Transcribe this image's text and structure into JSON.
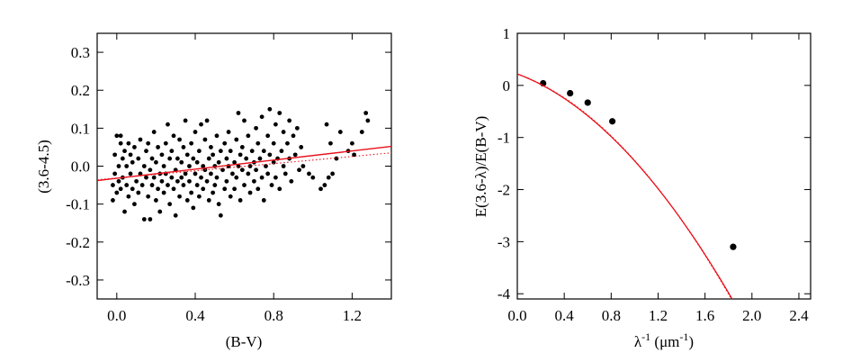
{
  "chart_data": [
    {
      "type": "scatter",
      "xlabel": "(B-V)",
      "ylabel": "(3.6-4.5)",
      "xlim": [
        -0.1,
        1.4
      ],
      "ylim": [
        -0.35,
        0.35
      ],
      "xticks": [
        "0.0",
        "0.4",
        "0.8",
        "1.2"
      ],
      "xtick_values": [
        0.0,
        0.4,
        0.8,
        1.2
      ],
      "yticks": [
        "-0.3",
        "-0.2",
        "-0.1",
        "0.0",
        "0.1",
        "0.2",
        "0.3"
      ],
      "ytick_values": [
        -0.3,
        -0.2,
        -0.1,
        0.0,
        0.1,
        0.2,
        0.3
      ],
      "series": [
        {
          "kind": "points",
          "color": "#000000",
          "points": [
            [
              -0.02,
              -0.09
            ],
            [
              -0.02,
              -0.05
            ],
            [
              -0.01,
              -0.02
            ],
            [
              -0.01,
              0.03
            ],
            [
              0.0,
              0.08
            ],
            [
              0.0,
              -0.07
            ],
            [
              0.01,
              0.0
            ],
            [
              0.01,
              -0.04
            ],
            [
              0.02,
              0.06
            ],
            [
              0.02,
              -0.06
            ],
            [
              0.02,
              0.08
            ],
            [
              0.03,
              -0.03
            ],
            [
              0.03,
              0.02
            ],
            [
              0.04,
              -0.12
            ],
            [
              0.04,
              0.04
            ],
            [
              0.05,
              -0.05
            ],
            [
              0.05,
              0.0
            ],
            [
              0.06,
              -0.08
            ],
            [
              0.06,
              0.06
            ],
            [
              0.07,
              -0.02
            ],
            [
              0.07,
              0.03
            ],
            [
              0.08,
              -0.06
            ],
            [
              0.08,
              0.01
            ],
            [
              0.09,
              -0.1
            ],
            [
              0.09,
              0.05
            ],
            [
              0.1,
              -0.04
            ],
            [
              0.11,
              0.02
            ],
            [
              0.11,
              -0.07
            ],
            [
              0.12,
              0.07
            ],
            [
              0.12,
              -0.02
            ],
            [
              0.13,
              -0.05
            ],
            [
              0.14,
              0.0
            ],
            [
              0.14,
              -0.14
            ],
            [
              0.15,
              0.04
            ],
            [
              0.15,
              -0.03
            ],
            [
              0.16,
              -0.08
            ],
            [
              0.16,
              0.06
            ],
            [
              0.17,
              -0.01
            ],
            [
              0.17,
              -0.14
            ],
            [
              0.18,
              0.02
            ],
            [
              0.18,
              -0.05
            ],
            [
              0.19,
              0.09
            ],
            [
              0.19,
              -0.03
            ],
            [
              0.2,
              -0.09
            ],
            [
              0.2,
              0.01
            ],
            [
              0.21,
              -0.06
            ],
            [
              0.21,
              0.05
            ],
            [
              0.22,
              -0.02
            ],
            [
              0.22,
              -0.12
            ],
            [
              0.23,
              0.03
            ],
            [
              0.23,
              -0.04
            ],
            [
              0.24,
              0.0
            ],
            [
              0.24,
              -0.07
            ],
            [
              0.25,
              0.06
            ],
            [
              0.25,
              -0.02
            ],
            [
              0.26,
              0.11
            ],
            [
              0.26,
              -0.05
            ],
            [
              0.27,
              0.02
            ],
            [
              0.27,
              -0.1
            ],
            [
              0.28,
              -0.03
            ],
            [
              0.28,
              0.04
            ],
            [
              0.29,
              -0.06
            ],
            [
              0.29,
              0.08
            ],
            [
              0.3,
              -0.01
            ],
            [
              0.3,
              -0.13
            ],
            [
              0.31,
              0.02
            ],
            [
              0.31,
              -0.04
            ],
            [
              0.32,
              0.07
            ],
            [
              0.32,
              -0.08
            ],
            [
              0.33,
              0.01
            ],
            [
              0.33,
              -0.03
            ],
            [
              0.34,
              -0.05
            ],
            [
              0.34,
              0.05
            ],
            [
              0.35,
              0.12
            ],
            [
              0.35,
              -0.02
            ],
            [
              0.36,
              -0.09
            ],
            [
              0.36,
              0.03
            ],
            [
              0.37,
              -0.04
            ],
            [
              0.37,
              0.0
            ],
            [
              0.38,
              0.06
            ],
            [
              0.38,
              -0.07
            ],
            [
              0.39,
              0.02
            ],
            [
              0.39,
              -0.11
            ],
            [
              0.4,
              -0.02
            ],
            [
              0.4,
              0.09
            ],
            [
              0.41,
              -0.05
            ],
            [
              0.41,
              0.01
            ],
            [
              0.42,
              0.04
            ],
            [
              0.42,
              -0.08
            ],
            [
              0.43,
              -0.03
            ],
            [
              0.43,
              0.11
            ],
            [
              0.44,
              0.0
            ],
            [
              0.44,
              -0.06
            ],
            [
              0.45,
              0.07
            ],
            [
              0.45,
              -0.01
            ],
            [
              0.46,
              0.12
            ],
            [
              0.46,
              -0.04
            ],
            [
              0.47,
              0.02
            ],
            [
              0.47,
              -0.09
            ],
            [
              0.48,
              0.05
            ],
            [
              0.48,
              -0.02
            ],
            [
              0.49,
              -0.07
            ],
            [
              0.49,
              0.03
            ],
            [
              0.5,
              0.0
            ],
            [
              0.5,
              -0.05
            ],
            [
              0.51,
              0.08
            ],
            [
              0.51,
              -0.03
            ],
            [
              0.52,
              0.01
            ],
            [
              0.52,
              -0.1
            ],
            [
              0.53,
              0.04
            ],
            [
              0.53,
              -0.13
            ],
            [
              0.54,
              -0.01
            ],
            [
              0.55,
              0.06
            ],
            [
              0.55,
              -0.06
            ],
            [
              0.56,
              0.02
            ],
            [
              0.56,
              -0.04
            ],
            [
              0.57,
              0.0
            ],
            [
              0.57,
              0.09
            ],
            [
              0.58,
              -0.08
            ],
            [
              0.58,
              0.04
            ],
            [
              0.59,
              -0.02
            ],
            [
              0.6,
              0.01
            ],
            [
              0.6,
              -0.06
            ],
            [
              0.61,
              0.07
            ],
            [
              0.61,
              -0.03
            ],
            [
              0.62,
              0.14
            ],
            [
              0.62,
              0.0
            ],
            [
              0.63,
              0.03
            ],
            [
              0.63,
              -0.09
            ],
            [
              0.64,
              -0.01
            ],
            [
              0.64,
              0.05
            ],
            [
              0.65,
              0.12
            ],
            [
              0.65,
              -0.05
            ],
            [
              0.66,
              0.02
            ],
            [
              0.67,
              -0.02
            ],
            [
              0.67,
              0.08
            ],
            [
              0.68,
              0.0
            ],
            [
              0.68,
              -0.07
            ],
            [
              0.69,
              0.04
            ],
            [
              0.7,
              0.01
            ],
            [
              0.7,
              -0.04
            ],
            [
              0.71,
              0.1
            ],
            [
              0.71,
              -0.01
            ],
            [
              0.72,
              0.06
            ],
            [
              0.72,
              -0.06
            ],
            [
              0.73,
              0.02
            ],
            [
              0.74,
              -0.03
            ],
            [
              0.74,
              0.13
            ],
            [
              0.75,
              0.04
            ],
            [
              0.75,
              -0.09
            ],
            [
              0.76,
              0.0
            ],
            [
              0.77,
              0.08
            ],
            [
              0.77,
              -0.02
            ],
            [
              0.78,
              0.15
            ],
            [
              0.78,
              0.03
            ],
            [
              0.79,
              -0.05
            ],
            [
              0.8,
              0.06
            ],
            [
              0.8,
              0.01
            ],
            [
              0.81,
              0.11
            ],
            [
              0.81,
              -0.03
            ],
            [
              0.82,
              0.02
            ],
            [
              0.83,
              0.14
            ],
            [
              0.83,
              -0.06
            ],
            [
              0.84,
              0.04
            ],
            [
              0.85,
              0.09
            ],
            [
              0.85,
              0.0
            ],
            [
              0.86,
              -0.02
            ],
            [
              0.87,
              0.06
            ],
            [
              0.88,
              0.12
            ],
            [
              0.88,
              0.02
            ],
            [
              0.89,
              -0.04
            ],
            [
              0.9,
              0.08
            ],
            [
              0.91,
              0.03
            ],
            [
              0.92,
              0.1
            ],
            [
              0.93,
              -0.01
            ],
            [
              0.94,
              0.05
            ],
            [
              0.95,
              0.0
            ],
            [
              0.98,
              -0.02
            ],
            [
              1.0,
              -0.03
            ],
            [
              1.04,
              -0.06
            ],
            [
              1.06,
              -0.05
            ],
            [
              1.07,
              0.11
            ],
            [
              1.08,
              -0.03
            ],
            [
              1.09,
              0.06
            ],
            [
              1.1,
              -0.02
            ],
            [
              1.12,
              0.02
            ],
            [
              1.14,
              0.09
            ],
            [
              1.18,
              0.04
            ],
            [
              1.2,
              0.06
            ],
            [
              1.21,
              0.03
            ],
            [
              1.25,
              0.09
            ],
            [
              1.27,
              0.14
            ],
            [
              1.28,
              0.12
            ]
          ]
        },
        {
          "kind": "fit-solid",
          "color": "#e8101a",
          "x": [
            -0.1,
            1.4
          ],
          "y": [
            -0.038,
            0.052
          ]
        },
        {
          "kind": "fit-dotted",
          "color": "#e8101a",
          "x": [
            -0.1,
            1.4
          ],
          "y": [
            -0.036,
            0.035
          ]
        }
      ]
    },
    {
      "type": "scatter",
      "xlabel": "λ",
      "xlabel_sup": "-1",
      "xlabel_unit": " (μm",
      "xlabel_unit_sup": "-1",
      "xlabel_close": ")",
      "ylabel": "E(3.6-λ)/E(B-V)",
      "xlim": [
        0.0,
        2.5
      ],
      "ylim": [
        -4.1,
        1.0
      ],
      "xticks": [
        "0.0",
        "0.4",
        "0.8",
        "1.2",
        "1.6",
        "2.0",
        "2.4"
      ],
      "xtick_values": [
        0.0,
        0.4,
        0.8,
        1.2,
        1.6,
        2.0,
        2.4
      ],
      "yticks": [
        "1",
        "0",
        "-1",
        "-2",
        "-3",
        "-4"
      ],
      "ytick_values": [
        1,
        0,
        -1,
        -2,
        -3,
        -4
      ],
      "series": [
        {
          "kind": "points",
          "color": "#000000",
          "points": [
            [
              0.22,
              0.04
            ],
            [
              0.45,
              -0.15
            ],
            [
              0.6,
              -0.33
            ],
            [
              0.81,
              -0.69
            ],
            [
              1.84,
              -3.1
            ]
          ]
        },
        {
          "kind": "curve-solid",
          "color": "#e8101a",
          "coeffs": [
            0.22,
            -0.84,
            -0.83
          ],
          "x": [
            0.0,
            2.1
          ]
        },
        {
          "kind": "curve-dotted",
          "color": "#e8101a",
          "coeffs": [
            0.22,
            -0.8,
            -0.86
          ],
          "x": [
            0.0,
            2.1
          ]
        }
      ]
    }
  ]
}
